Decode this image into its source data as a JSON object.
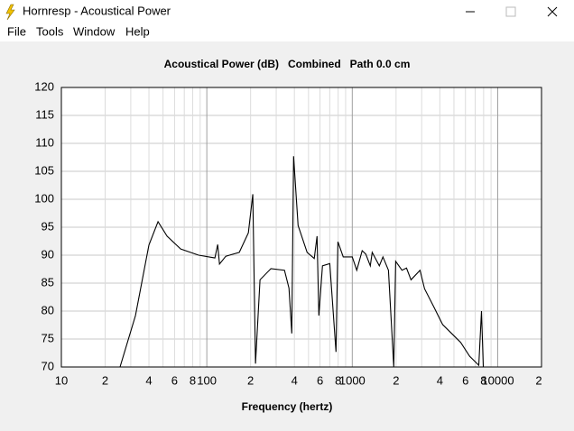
{
  "window": {
    "title": "Hornresp - Acoustical Power"
  },
  "menu": [
    "File",
    "Tools",
    "Window",
    "Help"
  ],
  "chart_data": {
    "type": "line",
    "title": "Acoustical Power (dB)   Combined   Path 0.0 cm",
    "xlabel": "Frequency (hertz)",
    "xscale": "log",
    "grid": true,
    "color": "#000000",
    "xlim": [
      10,
      20000
    ],
    "ylim": [
      70,
      120
    ],
    "yticks": [
      70,
      75,
      80,
      85,
      90,
      95,
      100,
      105,
      110,
      115,
      120
    ],
    "xticks": [
      10,
      {
        "value": 20,
        "label": "2"
      },
      {
        "value": 40,
        "label": "4"
      },
      {
        "value": 60,
        "label": "6"
      },
      {
        "value": 80,
        "label": "8"
      },
      100,
      {
        "value": 200,
        "label": "2"
      },
      {
        "value": 400,
        "label": "4"
      },
      {
        "value": 600,
        "label": "6"
      },
      {
        "value": 800,
        "label": "8"
      },
      1000,
      {
        "value": 2000,
        "label": "2"
      },
      {
        "value": 4000,
        "label": "4"
      },
      {
        "value": 6000,
        "label": "6"
      },
      {
        "value": 8000,
        "label": "8"
      },
      10000,
      {
        "value": 20000,
        "label": "2"
      }
    ],
    "xminor": [
      30,
      50,
      70,
      90,
      300,
      500,
      700,
      900,
      3000,
      5000,
      7000,
      9000
    ],
    "x": [
      25.3,
      32.3,
      40,
      46.2,
      53.3,
      66.1,
      87.9,
      113.7,
      118.8,
      122.2,
      135,
      167,
      193,
      207,
      216,
      232,
      276,
      342,
      367,
      384,
      395,
      424,
      489,
      548,
      573,
      589,
      624,
      700,
      773,
      796,
      867,
      1000,
      1074,
      1170,
      1239,
      1330,
      1370,
      1535,
      1626,
      1772,
      1930,
      1987,
      2197,
      2360,
      2535,
      2925,
      3140,
      3625,
      4180,
      4820,
      5560,
      6410,
      7410,
      7730,
      7960
    ],
    "values": [
      70,
      79.2,
      91.8,
      96,
      93.4,
      91.1,
      90,
      89.5,
      91.9,
      88.4,
      89.8,
      90.5,
      94,
      100.9,
      70.6,
      85.6,
      87.6,
      87.3,
      84.1,
      76,
      107.7,
      95.3,
      90.5,
      89.4,
      93.4,
      79.2,
      88.1,
      88.5,
      72.7,
      92.4,
      89.7,
      89.7,
      87.3,
      90.8,
      90.2,
      88.1,
      90.5,
      88.1,
      89.7,
      87.3,
      70,
      88.9,
      87.3,
      87.7,
      85.6,
      87.3,
      84,
      80.8,
      77.6,
      76,
      74.4,
      71.9,
      70.3,
      80,
      70
    ]
  }
}
